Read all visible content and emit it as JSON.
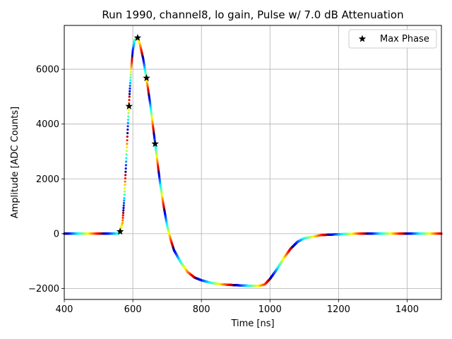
{
  "chart_data": {
    "type": "scatter",
    "title": "Run 1990, channel8, lo gain, Pulse w/ 7.0 dB Attenuation",
    "xlabel": "Time [ns]",
    "ylabel": "Amplitude [ADC Counts]",
    "xlim": [
      400,
      1500
    ],
    "ylim": [
      -2400,
      7600
    ],
    "x_ticks": [
      400,
      600,
      800,
      1000,
      1200,
      1400
    ],
    "y_ticks": [
      -2000,
      0,
      2000,
      4000,
      6000
    ],
    "x_tick_labels": [
      "400",
      "600",
      "800",
      "1000",
      "1200",
      "1400"
    ],
    "y_tick_labels": [
      "−2000",
      "0",
      "2000",
      "4000",
      "6000"
    ],
    "grid": true,
    "legend": {
      "location": "top-right",
      "entries": [
        "Max Phase"
      ]
    },
    "series": [
      {
        "name": "Max Phase",
        "marker": "star",
        "color": "#000000",
        "points": [
          [
            563,
            80
          ],
          [
            589,
            4650
          ],
          [
            614,
            7150
          ],
          [
            640,
            5680
          ],
          [
            665,
            3280
          ]
        ]
      }
    ],
    "pulse_waveform": {
      "marker": "dot",
      "colormap": "jet",
      "points": [
        [
          400,
          0
        ],
        [
          540,
          0
        ],
        [
          560,
          10
        ],
        [
          570,
          400
        ],
        [
          575,
          1300
        ],
        [
          580,
          2500
        ],
        [
          585,
          3800
        ],
        [
          590,
          5000
        ],
        [
          595,
          6000
        ],
        [
          600,
          6700
        ],
        [
          605,
          7050
        ],
        [
          612,
          7150
        ],
        [
          620,
          6950
        ],
        [
          630,
          6400
        ],
        [
          640,
          5650
        ],
        [
          650,
          4800
        ],
        [
          660,
          3800
        ],
        [
          670,
          2800
        ],
        [
          680,
          1800
        ],
        [
          690,
          1000
        ],
        [
          700,
          300
        ],
        [
          710,
          -200
        ],
        [
          720,
          -600
        ],
        [
          740,
          -1050
        ],
        [
          760,
          -1400
        ],
        [
          780,
          -1600
        ],
        [
          800,
          -1700
        ],
        [
          830,
          -1800
        ],
        [
          860,
          -1850
        ],
        [
          900,
          -1880
        ],
        [
          940,
          -1900
        ],
        [
          970,
          -1900
        ],
        [
          985,
          -1850
        ],
        [
          1000,
          -1650
        ],
        [
          1020,
          -1300
        ],
        [
          1040,
          -900
        ],
        [
          1060,
          -550
        ],
        [
          1080,
          -300
        ],
        [
          1100,
          -170
        ],
        [
          1150,
          -50
        ],
        [
          1200,
          -20
        ],
        [
          1250,
          0
        ],
        [
          1350,
          0
        ],
        [
          1500,
          0
        ]
      ]
    }
  },
  "colors": {
    "grid": "#b0b0b0",
    "axes": "#000000",
    "background": "#ffffff"
  }
}
